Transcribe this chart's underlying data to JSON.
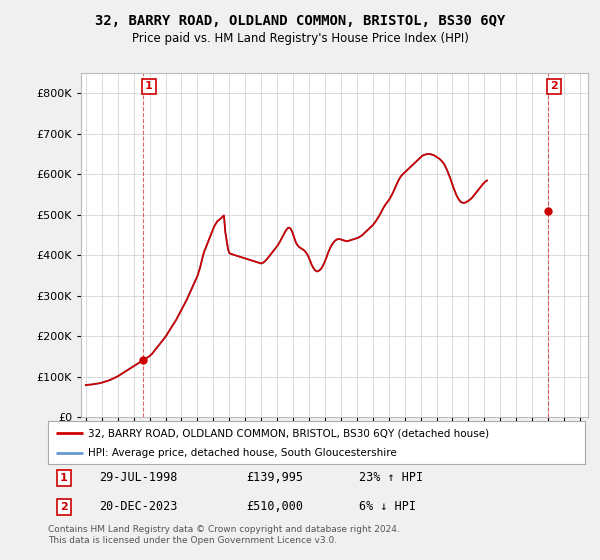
{
  "title": "32, BARRY ROAD, OLDLAND COMMON, BRISTOL, BS30 6QY",
  "subtitle": "Price paid vs. HM Land Registry's House Price Index (HPI)",
  "hpi_label": "HPI: Average price, detached house, South Gloucestershire",
  "property_label": "32, BARRY ROAD, OLDLAND COMMON, BRISTOL, BS30 6QY (detached house)",
  "annotation1_date": "29-JUL-1998",
  "annotation1_price": "£139,995",
  "annotation1_hpi": "23% ↑ HPI",
  "annotation2_date": "20-DEC-2023",
  "annotation2_price": "£510,000",
  "annotation2_hpi": "6% ↓ HPI",
  "copyright": "Contains HM Land Registry data © Crown copyright and database right 2024.\nThis data is licensed under the Open Government Licence v3.0.",
  "property_color": "#cc0000",
  "hpi_color": "#6699cc",
  "background_color": "#f0f0f0",
  "plot_bg_color": "#ffffff",
  "ylim": [
    0,
    850000
  ],
  "xlim_start": 1994.7,
  "xlim_end": 2026.5,
  "purchase1_x": 1998.57,
  "purchase1_y": 139995,
  "purchase2_x": 2023.97,
  "purchase2_y": 510000,
  "hpi_values": [
    76000,
    76500,
    77000,
    77200,
    77500,
    78000,
    78500,
    79000,
    79500,
    80000,
    80500,
    81000,
    82000,
    83000,
    84000,
    85000,
    86000,
    87000,
    88000,
    89500,
    91000,
    92500,
    94000,
    95500,
    97000,
    99000,
    101000,
    103000,
    105000,
    107000,
    109000,
    111000,
    113000,
    115000,
    117000,
    119000,
    121000,
    123000,
    125000,
    127000,
    129000,
    131000,
    133000,
    135000,
    137000,
    139000,
    141000,
    143000,
    145000,
    148000,
    151000,
    155000,
    159000,
    163000,
    167000,
    171000,
    175000,
    179000,
    183000,
    187000,
    191000,
    196000,
    201000,
    206000,
    211000,
    216000,
    221000,
    226000,
    231000,
    237000,
    243000,
    249000,
    255000,
    261000,
    267000,
    273000,
    279000,
    286000,
    293000,
    300000,
    307000,
    314000,
    321000,
    328000,
    335000,
    345000,
    355000,
    368000,
    381000,
    392000,
    400000,
    408000,
    416000,
    424000,
    432000,
    440000,
    448000,
    455000,
    460000,
    465000,
    468000,
    470000,
    473000,
    476000,
    479000,
    440000,
    420000,
    400000,
    390000,
    388000,
    387000,
    386000,
    385000,
    384000,
    383000,
    382000,
    381000,
    380000,
    379000,
    378000,
    377000,
    376000,
    375000,
    374000,
    373000,
    372000,
    371000,
    370000,
    369000,
    368000,
    367000,
    366000,
    365000,
    366000,
    368000,
    371000,
    374000,
    378000,
    382000,
    386000,
    390000,
    394000,
    398000,
    402000,
    406000,
    411000,
    416000,
    422000,
    428000,
    434000,
    440000,
    445000,
    449000,
    450000,
    448000,
    443000,
    435000,
    425000,
    416000,
    410000,
    406000,
    403000,
    401000,
    399000,
    397000,
    394000,
    390000,
    385000,
    378000,
    370000,
    362000,
    356000,
    351000,
    348000,
    346000,
    347000,
    349000,
    352000,
    357000,
    363000,
    370000,
    378000,
    387000,
    395000,
    402000,
    408000,
    413000,
    417000,
    420000,
    422000,
    423000,
    423000,
    422000,
    421000,
    420000,
    419000,
    418000,
    418000,
    419000,
    420000,
    421000,
    422000,
    423000,
    424000,
    425000,
    426000,
    428000,
    430000,
    432000,
    435000,
    438000,
    441000,
    444000,
    447000,
    450000,
    453000,
    456000,
    460000,
    464000,
    469000,
    474000,
    479000,
    485000,
    491000,
    497000,
    502000,
    507000,
    511000,
    515000,
    520000,
    526000,
    532000,
    539000,
    546000,
    553000,
    560000,
    566000,
    571000,
    575000,
    578000,
    581000,
    584000,
    587000,
    590000,
    593000,
    596000,
    599000,
    602000,
    605000,
    608000,
    611000,
    614000,
    617000,
    620000,
    622000,
    623000,
    624000,
    625000,
    625000,
    625000,
    624000,
    623000,
    622000,
    620000,
    618000,
    616000,
    614000,
    611000,
    608000,
    604000,
    599000,
    593000,
    586000,
    578000,
    570000,
    561000,
    552000,
    543000,
    535000,
    527000,
    521000,
    516000,
    512000,
    510000,
    509000,
    509000,
    510000,
    512000,
    514000,
    516000,
    519000,
    522000,
    526000,
    530000,
    534000,
    538000,
    542000,
    546000,
    550000,
    554000,
    557000,
    560000,
    562000
  ]
}
